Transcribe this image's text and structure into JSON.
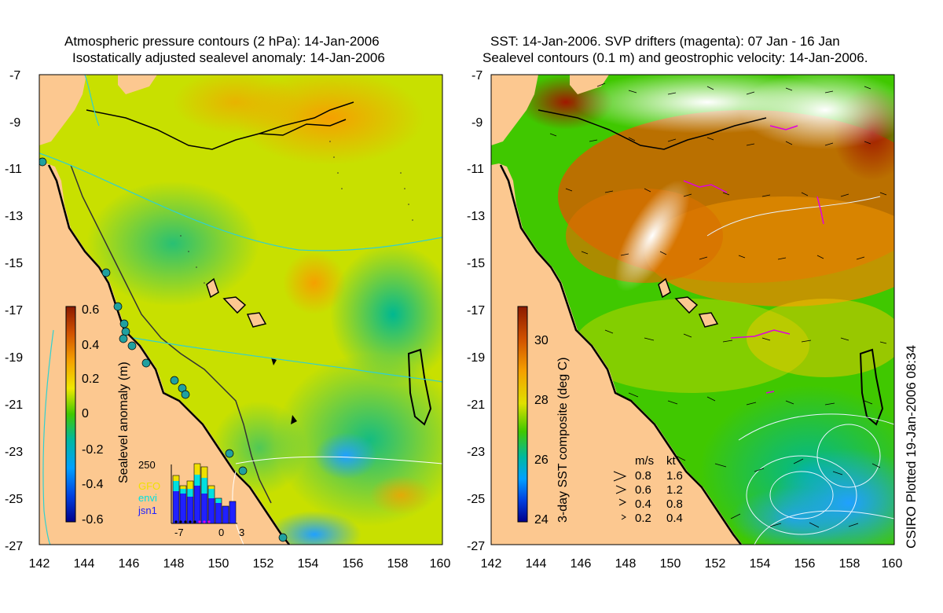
{
  "left_panel": {
    "title_line1": "Atmospheric pressure contours (2 hPa): 14-Jan-2006",
    "title_line2": "Isostatically adjusted sealevel anomaly: 14-Jan-2006",
    "y_ticks": [
      "-7",
      "-9",
      "-11",
      "-13",
      "-15",
      "-17",
      "-19",
      "-21",
      "-23",
      "-25",
      "-27"
    ],
    "x_ticks": [
      "142",
      "144",
      "146",
      "148",
      "150",
      "152",
      "154",
      "156",
      "158",
      "160"
    ],
    "colorbar": {
      "label": "Sealevel anomaly (m)",
      "ticks": [
        "0.6",
        "0.4",
        "0.2",
        "0",
        "-0.2",
        "-0.4",
        "-0.6"
      ]
    },
    "histogram": {
      "count_label": "250",
      "legend": [
        "GFO",
        "envi",
        "jsn1"
      ],
      "legend_colors": [
        "#f0e000",
        "#00e0e0",
        "#2020ff"
      ],
      "x_ticks": [
        "-7",
        "0",
        "3"
      ]
    }
  },
  "right_panel": {
    "title_line1": "SST: 14-Jan-2006. SVP drifters (magenta): 07 Jan - 16 Jan",
    "title_line2": "Sealevel contours (0.1 m) and geostrophic velocity: 14-Jan-2006.",
    "y_ticks": [
      "-7",
      "-9",
      "-11",
      "-13",
      "-15",
      "-17",
      "-19",
      "-21",
      "-23",
      "-25",
      "-27"
    ],
    "x_ticks": [
      "142",
      "144",
      "146",
      "148",
      "150",
      "152",
      "154",
      "156",
      "158",
      "160"
    ],
    "colorbar": {
      "label": "3-day SST composite (deg C)",
      "ticks": [
        "30",
        "28",
        "26",
        "24"
      ]
    },
    "velocity_key": {
      "header_ms": "m/s",
      "header_kt": "kt",
      "rows": [
        {
          "ms": "0.8",
          "kt": "1.6"
        },
        {
          "ms": "0.6",
          "kt": "1.2"
        },
        {
          "ms": "0.4",
          "kt": "0.8"
        },
        {
          "ms": "0.2",
          "kt": "0.4"
        }
      ]
    }
  },
  "stamp": "CSIRO Plotted 19-Jan-2006 08:34",
  "colors": {
    "land": "#fcc890",
    "high_anomaly": "#f5a000",
    "mid_anomaly": "#c8e000",
    "low_anomaly": "#00b890",
    "warm_sst": "#d06000",
    "cool_sst": "#20b0ff",
    "drifter": "#e000e0"
  }
}
